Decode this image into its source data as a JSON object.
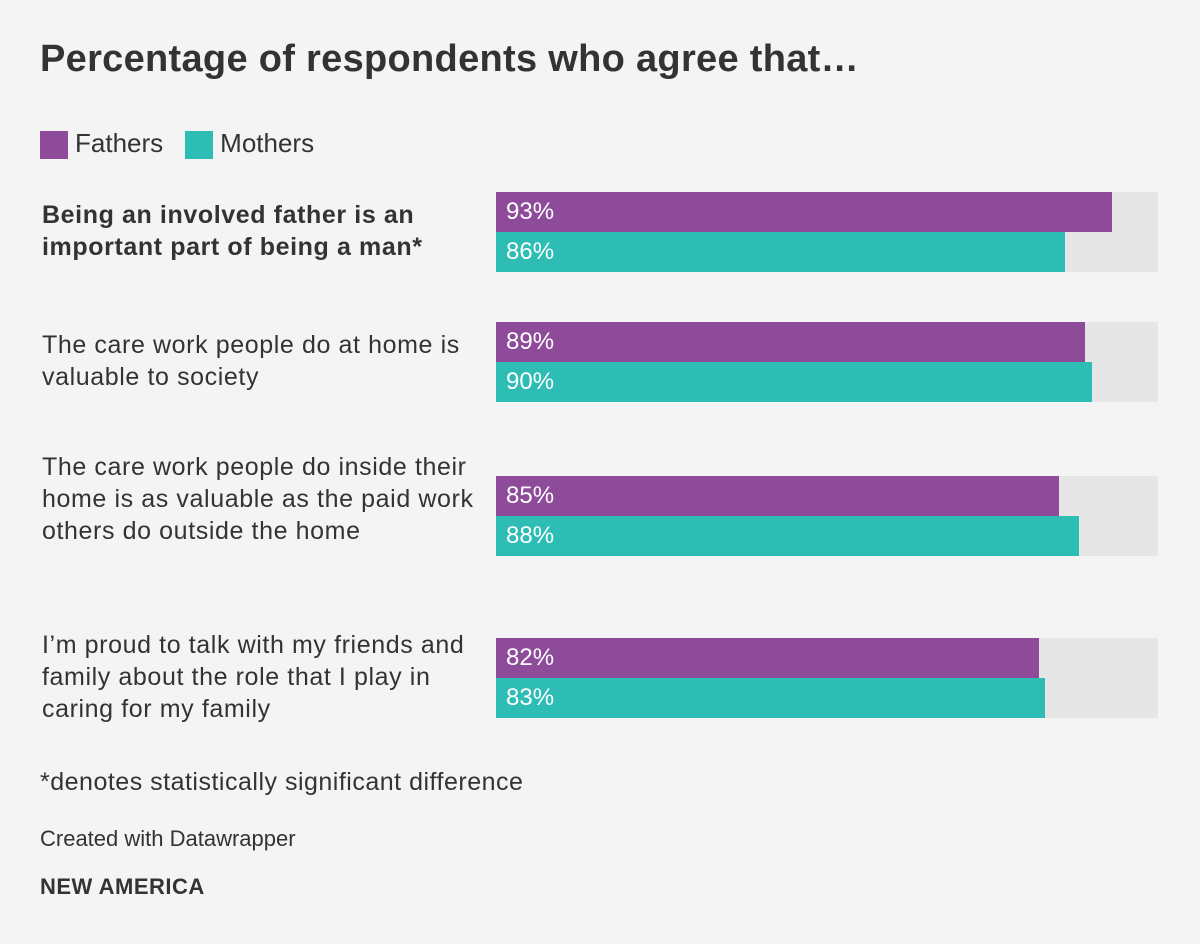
{
  "title": "Percentage of respondents who agree that…",
  "legend": [
    {
      "label": "Fathers",
      "color": "#8e4b9a"
    },
    {
      "label": "Mothers",
      "color": "#2dbdb5"
    }
  ],
  "chart_data": {
    "type": "bar",
    "orientation": "horizontal",
    "title": "Percentage of respondents who agree that…",
    "xlim": [
      0,
      100
    ],
    "categories": [
      "Being an involved father is an important part of being a man*",
      "The care work people do at home is valuable to society",
      "The care work people do inside their home is as valuable as the paid work others do outside the home",
      "I’m proud to talk with my friends and family about the role that I play in caring for my family"
    ],
    "series": [
      {
        "name": "Fathers",
        "values": [
          93,
          89,
          85,
          82
        ],
        "labels": [
          "93%",
          "89%",
          "85%",
          "82%"
        ]
      },
      {
        "name": "Mothers",
        "values": [
          86,
          90,
          88,
          83
        ],
        "labels": [
          "86%",
          "90%",
          "88%",
          "83%"
        ]
      }
    ],
    "background_color": "#e6e6e6"
  },
  "footnote": "*denotes statistically significant difference",
  "credit": "Created with Datawrapper",
  "organization": "NEW AMERICA"
}
